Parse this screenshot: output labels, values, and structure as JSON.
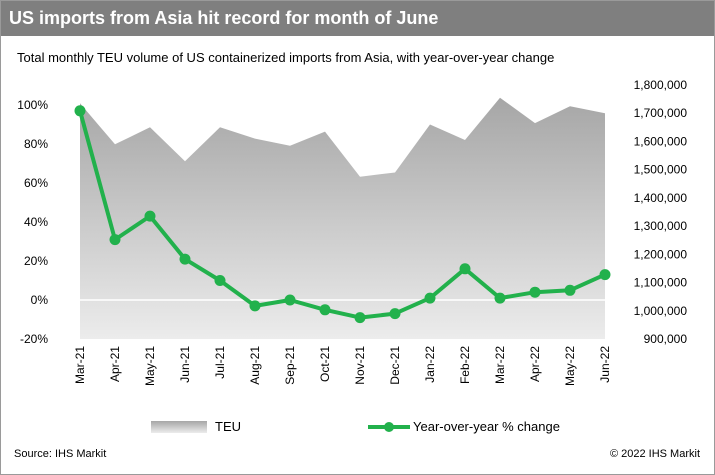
{
  "header": {
    "title": "US imports from Asia hit record for month of June"
  },
  "subtitle": "Total monthly TEU volume of US containerized imports from Asia, with year-over-year change",
  "footer": {
    "source": "Source: IHS Markit",
    "copyright": "© 2022 IHS Markit"
  },
  "legend": {
    "teu_label": "TEU",
    "yoy_label": "Year-over-year % change"
  },
  "colors": {
    "header_bg": "#7f7f7f",
    "line": "#22b14c",
    "area_top": "#a6a6a6",
    "area_bottom": "#ececec"
  },
  "chart_data": {
    "type": "line+area",
    "categories": [
      "Mar-21",
      "Apr-21",
      "May-21",
      "Jun-21",
      "Jul-21",
      "Aug-21",
      "Sep-21",
      "Oct-21",
      "Nov-21",
      "Dec-21",
      "Jan-22",
      "Feb-22",
      "Mar-22",
      "Apr-22",
      "May-22",
      "Jun-22"
    ],
    "series": [
      {
        "name": "TEU",
        "axis": "right",
        "kind": "area",
        "values": [
          1735000,
          1590000,
          1650000,
          1530000,
          1650000,
          1610000,
          1585000,
          1635000,
          1475000,
          1490000,
          1660000,
          1605000,
          1755000,
          1665000,
          1725000,
          1700000
        ]
      },
      {
        "name": "Year-over-year % change",
        "axis": "left",
        "kind": "line",
        "values": [
          97,
          31,
          43,
          21,
          10,
          -3,
          0,
          -5,
          -9,
          -7,
          1,
          16,
          1,
          4,
          5,
          13
        ]
      }
    ],
    "left_axis": {
      "ylim": [
        -20,
        100
      ],
      "ticks": [
        "-20%",
        "0%",
        "20%",
        "40%",
        "60%",
        "80%",
        "100%"
      ]
    },
    "right_axis": {
      "ylim": [
        900000,
        1800000
      ],
      "ticks": [
        "900,000",
        "1,000,000",
        "1,100,000",
        "1,200,000",
        "1,300,000",
        "1,400,000",
        "1,500,000",
        "1,600,000",
        "1,700,000",
        "1,800,000"
      ]
    },
    "legend_position": "bottom",
    "grid": false
  }
}
